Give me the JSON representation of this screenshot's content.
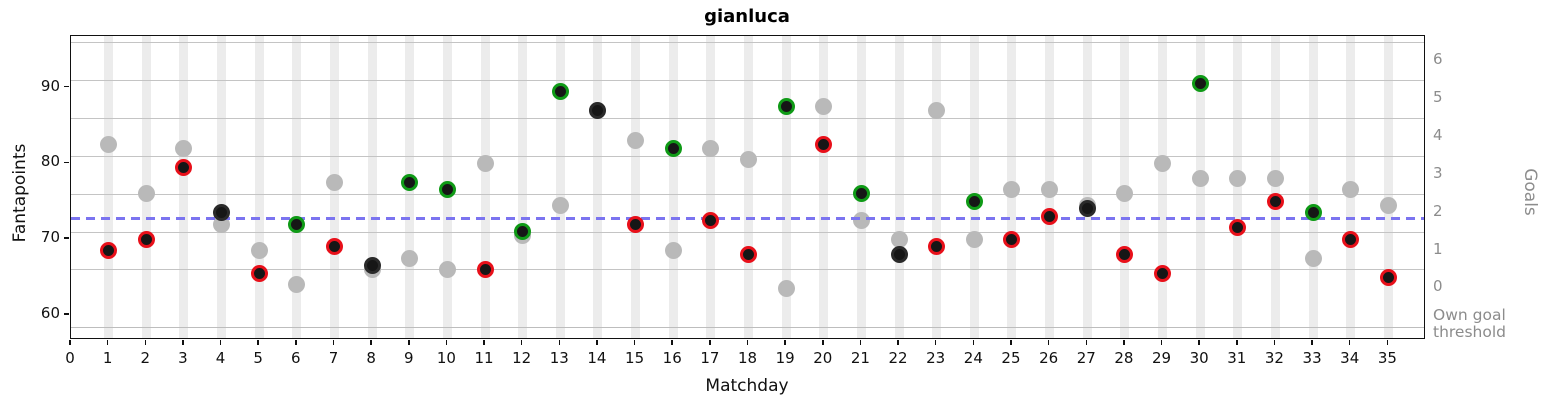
{
  "chart_data": {
    "type": "scatter",
    "title": "gianluca",
    "xlabel": "Matchday",
    "ylabel_left": "Fantapoints",
    "ylabel_right": "Goals",
    "xlim": [
      0,
      36
    ],
    "ylim_fantapoints": [
      56.7,
      96.8
    ],
    "x_tick_labels": [
      "0",
      "1",
      "2",
      "3",
      "4",
      "5",
      "6",
      "7",
      "8",
      "9",
      "10",
      "11",
      "12",
      "13",
      "14",
      "15",
      "16",
      "17",
      "18",
      "19",
      "20",
      "21",
      "22",
      "23",
      "24",
      "25",
      "26",
      "27",
      "28",
      "29",
      "30",
      "31",
      "32",
      "33",
      "34",
      "35"
    ],
    "left_axis_tick_values": [
      60,
      70,
      80,
      90
    ],
    "goal_axis": {
      "tick_labels": [
        "0",
        "1",
        "2",
        "3",
        "4",
        "5",
        "6"
      ],
      "tick_positions_fantapoints": [
        63.5,
        68.5,
        73.5,
        78.5,
        83.5,
        88.5,
        93.5
      ],
      "goal_band_lines_fantapoints": [
        66,
        71,
        76,
        81,
        86,
        91,
        96
      ],
      "own_goal_threshold_fantapoints": 58.4,
      "own_goal_label_lines": [
        "Own goal",
        "threshold"
      ]
    },
    "average_line": {
      "value_fantapoints": 72.7,
      "style": "dashed"
    },
    "series": [
      {
        "name": "fantapoints",
        "marker": "black dot with result-colored edge",
        "points": [
          {
            "matchday": 1,
            "fantapoints": 68.5,
            "result": "loss"
          },
          {
            "matchday": 2,
            "fantapoints": 70.0,
            "result": "loss"
          },
          {
            "matchday": 3,
            "fantapoints": 79.5,
            "result": "loss"
          },
          {
            "matchday": 4,
            "fantapoints": 73.5,
            "result": "draw"
          },
          {
            "matchday": 5,
            "fantapoints": 65.5,
            "result": "loss"
          },
          {
            "matchday": 6,
            "fantapoints": 72.0,
            "result": "win"
          },
          {
            "matchday": 7,
            "fantapoints": 69.0,
            "result": "loss"
          },
          {
            "matchday": 8,
            "fantapoints": 66.5,
            "result": "draw"
          },
          {
            "matchday": 9,
            "fantapoints": 77.5,
            "result": "win"
          },
          {
            "matchday": 10,
            "fantapoints": 76.5,
            "result": "win"
          },
          {
            "matchday": 11,
            "fantapoints": 66.0,
            "result": "loss"
          },
          {
            "matchday": 12,
            "fantapoints": 71.0,
            "result": "win"
          },
          {
            "matchday": 13,
            "fantapoints": 89.5,
            "result": "win"
          },
          {
            "matchday": 14,
            "fantapoints": 87.0,
            "result": "draw"
          },
          {
            "matchday": 15,
            "fantapoints": 72.0,
            "result": "loss"
          },
          {
            "matchday": 16,
            "fantapoints": 82.0,
            "result": "win"
          },
          {
            "matchday": 17,
            "fantapoints": 72.5,
            "result": "loss"
          },
          {
            "matchday": 18,
            "fantapoints": 68.0,
            "result": "loss"
          },
          {
            "matchday": 19,
            "fantapoints": 87.5,
            "result": "win"
          },
          {
            "matchday": 20,
            "fantapoints": 82.5,
            "result": "loss"
          },
          {
            "matchday": 21,
            "fantapoints": 76.0,
            "result": "win"
          },
          {
            "matchday": 22,
            "fantapoints": 68.0,
            "result": "draw"
          },
          {
            "matchday": 23,
            "fantapoints": 69.0,
            "result": "loss"
          },
          {
            "matchday": 24,
            "fantapoints": 75.0,
            "result": "win"
          },
          {
            "matchday": 25,
            "fantapoints": 70.0,
            "result": "loss"
          },
          {
            "matchday": 26,
            "fantapoints": 73.0,
            "result": "loss"
          },
          {
            "matchday": 27,
            "fantapoints": 74.0,
            "result": "draw"
          },
          {
            "matchday": 28,
            "fantapoints": 68.0,
            "result": "loss"
          },
          {
            "matchday": 29,
            "fantapoints": 65.5,
            "result": "loss"
          },
          {
            "matchday": 30,
            "fantapoints": 90.5,
            "result": "win"
          },
          {
            "matchday": 31,
            "fantapoints": 71.5,
            "result": "loss"
          },
          {
            "matchday": 32,
            "fantapoints": 75.0,
            "result": "loss"
          },
          {
            "matchday": 33,
            "fantapoints": 73.5,
            "result": "win"
          },
          {
            "matchday": 34,
            "fantapoints": 70.0,
            "result": "loss"
          },
          {
            "matchday": 35,
            "fantapoints": 65.0,
            "result": "loss"
          }
        ]
      },
      {
        "name": "opponent_gray",
        "marker": "gray dot",
        "values_fantapoints": [
          82.5,
          76,
          82,
          72,
          68.5,
          64,
          77.5,
          66,
          67.5,
          66,
          80,
          70.5,
          74.5,
          87,
          83,
          68.5,
          82,
          80.5,
          63.5,
          87.5,
          72.5,
          70,
          87,
          70,
          76.5,
          76.5,
          74.5,
          76,
          80,
          78,
          78,
          78,
          67.5,
          76.5,
          74.5
        ]
      }
    ],
    "colors": {
      "win_edge": "#0f9a16",
      "loss_edge": "#e8101a",
      "draw_edge": "#2a2a2a",
      "dot_fill": "#161616",
      "opponent_dot": "#b9b9b9",
      "average_line": "#7b74f0",
      "gridline": "#c4c4c4",
      "matchday_band": "#ececec",
      "right_axis_text": "#8c8c8c"
    }
  }
}
